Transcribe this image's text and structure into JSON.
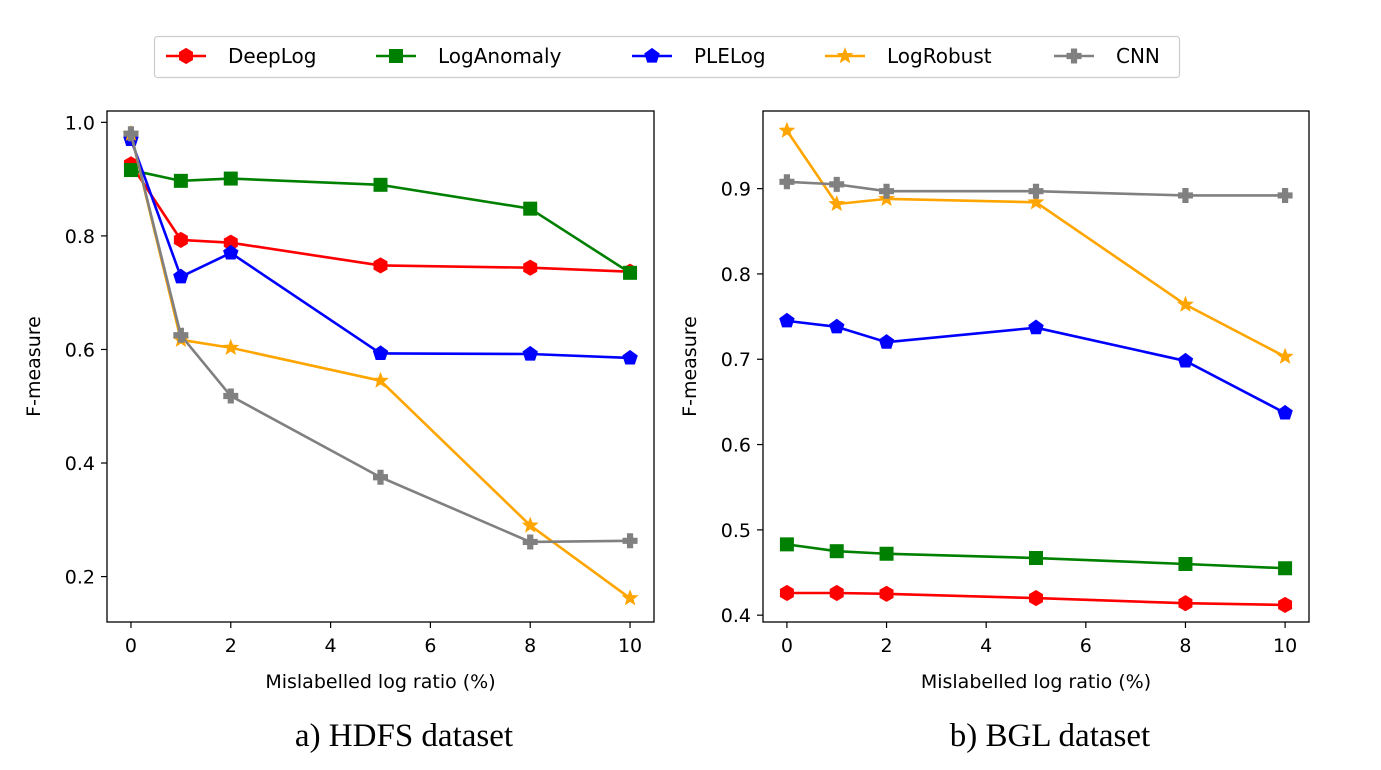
{
  "legend": [
    {
      "name": "DeepLog",
      "color": "#ff0000",
      "marker": "hexagon"
    },
    {
      "name": "LogAnomaly",
      "color": "#008000",
      "marker": "square"
    },
    {
      "name": "PLELog",
      "color": "#0000ff",
      "marker": "pentagon"
    },
    {
      "name": "LogRobust",
      "color": "#ffa500",
      "marker": "star"
    },
    {
      "name": "CNN",
      "color": "#808080",
      "marker": "plus"
    }
  ],
  "chart_data": [
    {
      "type": "line",
      "caption": "a) HDFS dataset",
      "xlabel": "Mislabelled log ratio (%)",
      "ylabel": "F-measure",
      "x": [
        0,
        1,
        2,
        5,
        8,
        10
      ],
      "xticks": [
        0,
        2,
        4,
        6,
        8,
        10
      ],
      "yticks": [
        0.2,
        0.4,
        0.6,
        0.8,
        1.0
      ],
      "ytick_labels": [
        "0.2",
        "0.4",
        "0.6",
        "0.8",
        "1.0"
      ],
      "xlim": [
        -0.48,
        10.48
      ],
      "ylim": [
        0.12,
        1.02
      ],
      "grid": false,
      "series": [
        {
          "name": "DeepLog",
          "values": [
            0.926,
            0.793,
            0.788,
            0.748,
            0.744,
            0.737
          ]
        },
        {
          "name": "LogAnomaly",
          "values": [
            0.916,
            0.897,
            0.901,
            0.89,
            0.848,
            0.735
          ]
        },
        {
          "name": "PLELog",
          "values": [
            0.97,
            0.728,
            0.77,
            0.593,
            0.592,
            0.585
          ]
        },
        {
          "name": "LogRobust",
          "values": [
            0.98,
            0.617,
            0.603,
            0.545,
            0.29,
            0.162
          ]
        },
        {
          "name": "CNN",
          "values": [
            0.98,
            0.625,
            0.518,
            0.375,
            0.261,
            0.263
          ]
        }
      ]
    },
    {
      "type": "line",
      "caption": "b) BGL dataset",
      "xlabel": "Mislabelled log ratio (%)",
      "ylabel": "F-measure",
      "x": [
        0,
        1,
        2,
        5,
        8,
        10
      ],
      "xticks": [
        0,
        2,
        4,
        6,
        8,
        10
      ],
      "yticks": [
        0.4,
        0.5,
        0.6,
        0.7,
        0.8,
        0.9
      ],
      "ytick_labels": [
        "0.4",
        "0.5",
        "0.6",
        "0.7",
        "0.8",
        "0.9"
      ],
      "xlim": [
        -0.48,
        10.48
      ],
      "ylim": [
        0.392,
        0.991
      ],
      "grid": false,
      "series": [
        {
          "name": "DeepLog",
          "values": [
            0.426,
            0.426,
            0.425,
            0.42,
            0.414,
            0.412
          ]
        },
        {
          "name": "LogAnomaly",
          "values": [
            0.483,
            0.475,
            0.472,
            0.467,
            0.46,
            0.455
          ]
        },
        {
          "name": "PLELog",
          "values": [
            0.745,
            0.738,
            0.72,
            0.737,
            0.698,
            0.637
          ]
        },
        {
          "name": "LogRobust",
          "values": [
            0.968,
            0.882,
            0.888,
            0.884,
            0.764,
            0.703
          ]
        },
        {
          "name": "CNN",
          "values": [
            0.908,
            0.905,
            0.897,
            0.897,
            0.892,
            0.892
          ]
        }
      ]
    }
  ]
}
